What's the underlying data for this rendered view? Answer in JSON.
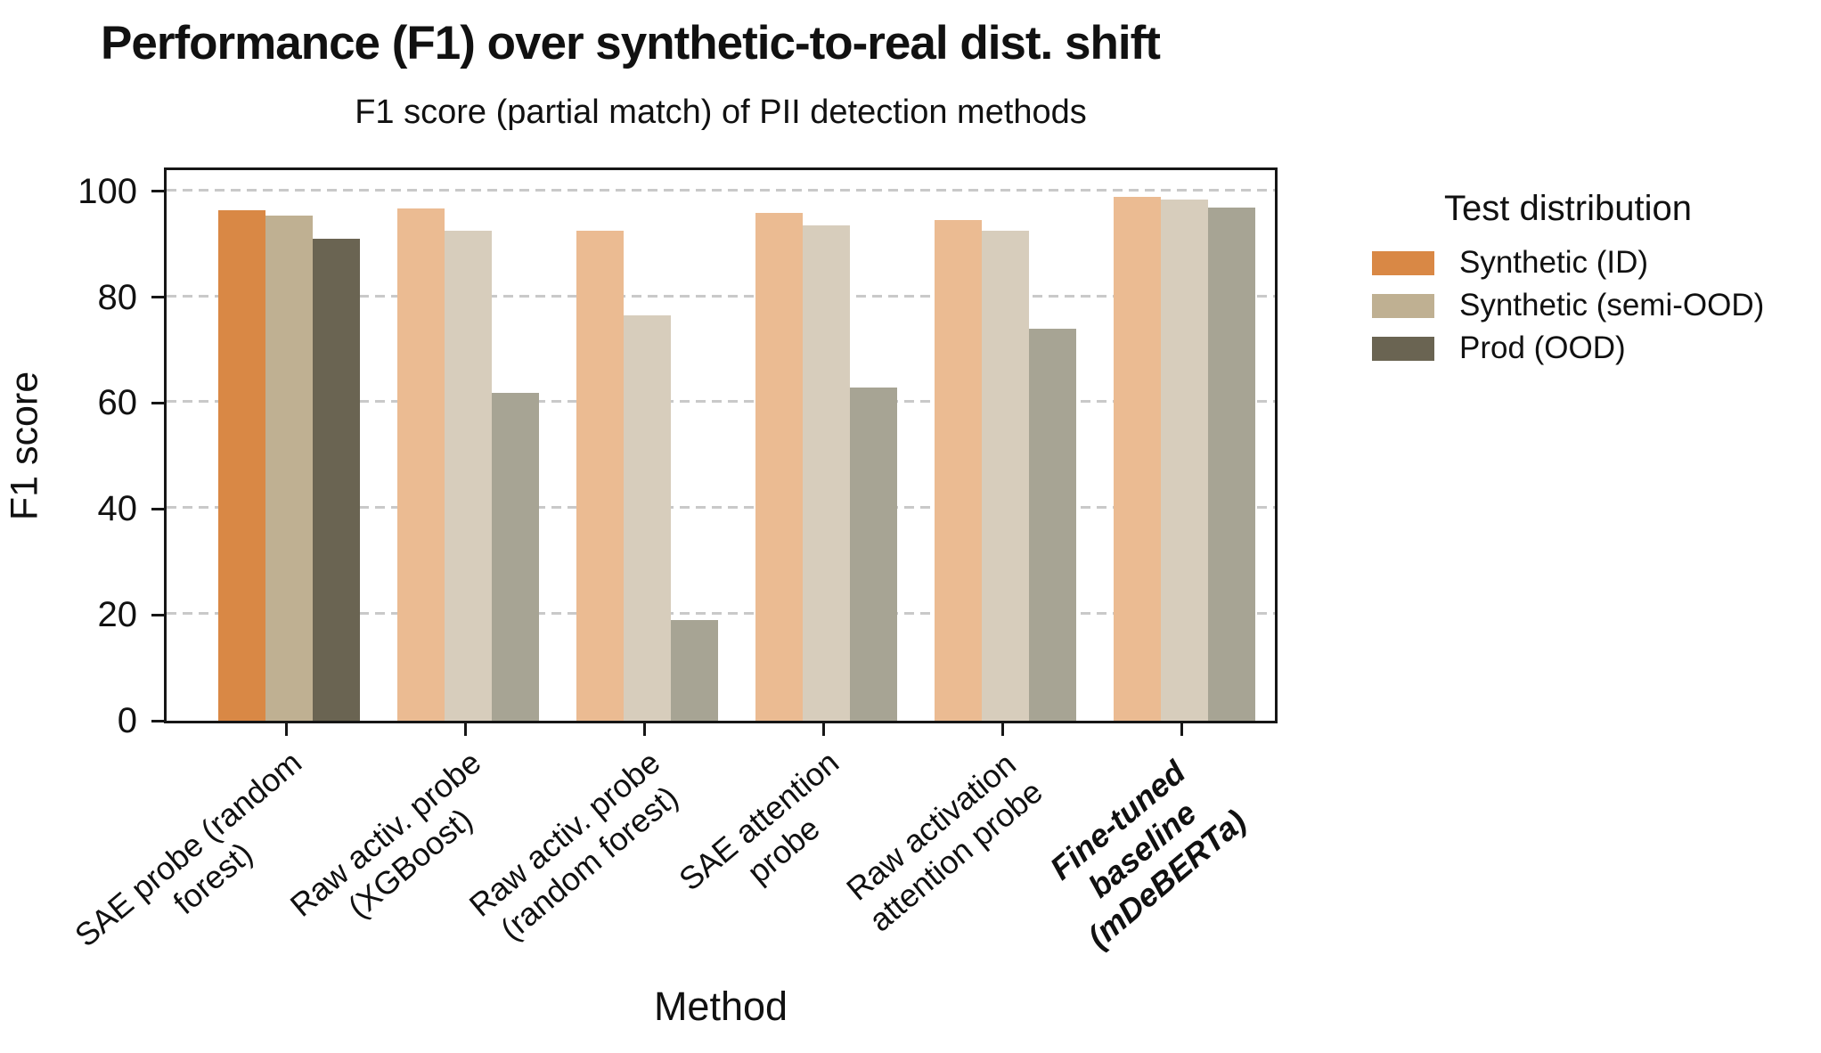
{
  "title": "Performance (F1) over synthetic-to-real dist. shift",
  "subtitle": "F1 score (partial match) of PII detection methods",
  "chart_data": {
    "type": "bar",
    "title": "Performance (F1) over synthetic-to-real dist. shift",
    "subtitle": "F1 score (partial match) of PII detection methods",
    "xlabel": "Method",
    "ylabel": "F1 score",
    "ylim": [
      0,
      104
    ],
    "yticks": [
      0,
      20,
      40,
      60,
      80,
      100
    ],
    "grid": "horizontal dashed gray lines at 20/40/60/80/100",
    "legend_position": "outside right, top",
    "legend_title": "Test distribution",
    "categories": [
      "SAE probe (random forest)",
      "Raw activ. probe (XGBoost)",
      "Raw activ. probe (random forest)",
      "SAE attention probe",
      "Raw activation attention probe",
      "Fine-tuned baseline (mDeBERTa)"
    ],
    "category_label_lines": [
      [
        "SAE probe (random",
        "forest)"
      ],
      [
        "Raw activ. probe",
        "(XGBoost)"
      ],
      [
        "Raw activ. probe",
        "(random forest)"
      ],
      [
        "SAE attention",
        "probe"
      ],
      [
        "Raw activation",
        "attention probe"
      ],
      [
        "Fine-tuned",
        "baseline",
        "(mDeBERTa)"
      ]
    ],
    "highlighted_category_index": 0,
    "bold_category_index": 5,
    "series": [
      {
        "name": "Synthetic (ID)",
        "color_full": "#D98845",
        "color_faded": "#EBBB92",
        "values": [
          96.5,
          96.8,
          92.5,
          96.0,
          94.5,
          99.0
        ]
      },
      {
        "name": "Synthetic (semi-OOD)",
        "color_full": "#BFB092",
        "color_faded": "#D7CDBC",
        "values": [
          95.5,
          92.5,
          76.5,
          93.5,
          92.5,
          98.5
        ]
      },
      {
        "name": "Prod (OOD)",
        "color_full": "#6A6452",
        "color_faded": "#A7A494",
        "values": [
          91.0,
          62.0,
          19.0,
          63.0,
          74.0,
          97.0
        ]
      }
    ]
  },
  "legend": {
    "title": "Test distribution",
    "items": [
      {
        "label": "Synthetic (ID)",
        "color": "#D98845"
      },
      {
        "label": "Synthetic (semi-OOD)",
        "color": "#BFB092"
      },
      {
        "label": "Prod (OOD)",
        "color": "#6A6452"
      }
    ]
  },
  "axes": {
    "xlabel": "Method",
    "ylabel": "F1 score"
  }
}
